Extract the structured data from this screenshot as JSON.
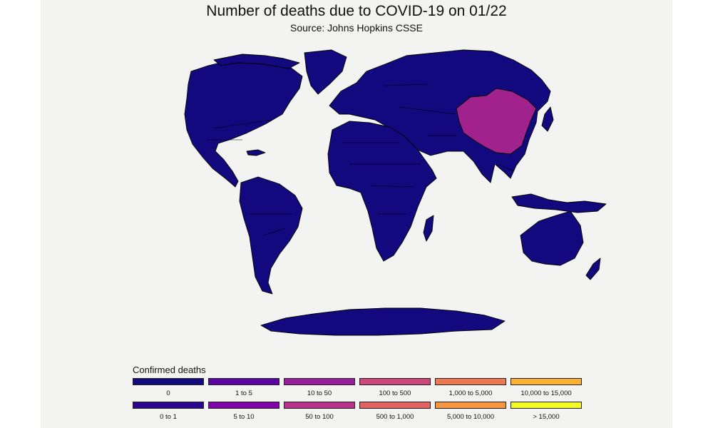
{
  "title": "Number of deaths due to COVID-19 on 01/22",
  "subtitle": "Source: Johns Hopkins CSSE",
  "legend": {
    "title": "Confirmed deaths",
    "items": [
      {
        "label": "0",
        "color": "#12097e"
      },
      {
        "label": "1 to 5",
        "color": "#5c03a3"
      },
      {
        "label": "10 to 50",
        "color": "#9a1d9d"
      },
      {
        "label": "100 to 500",
        "color": "#cc4778"
      },
      {
        "label": "1,000 to 5,000",
        "color": "#ed7953"
      },
      {
        "label": "10,000 to 15,000",
        "color": "#fbb32f"
      },
      {
        "label": "0 to 1",
        "color": "#2a068f"
      },
      {
        "label": "5 to 10",
        "color": "#7e03a8"
      },
      {
        "label": "50 to 100",
        "color": "#b83289"
      },
      {
        "label": "500 to 1,000",
        "color": "#e16462"
      },
      {
        "label": "5,000 to 10,000",
        "color": "#f89540"
      },
      {
        "label": "> 15,000",
        "color": "#f0f921"
      }
    ]
  },
  "map": {
    "date": "01/22",
    "default_color": "#12097e",
    "highlighted": [
      {
        "country": "China",
        "color": "#a2228d"
      }
    ],
    "border_color": "#000000",
    "background": "#f3f3f1"
  }
}
